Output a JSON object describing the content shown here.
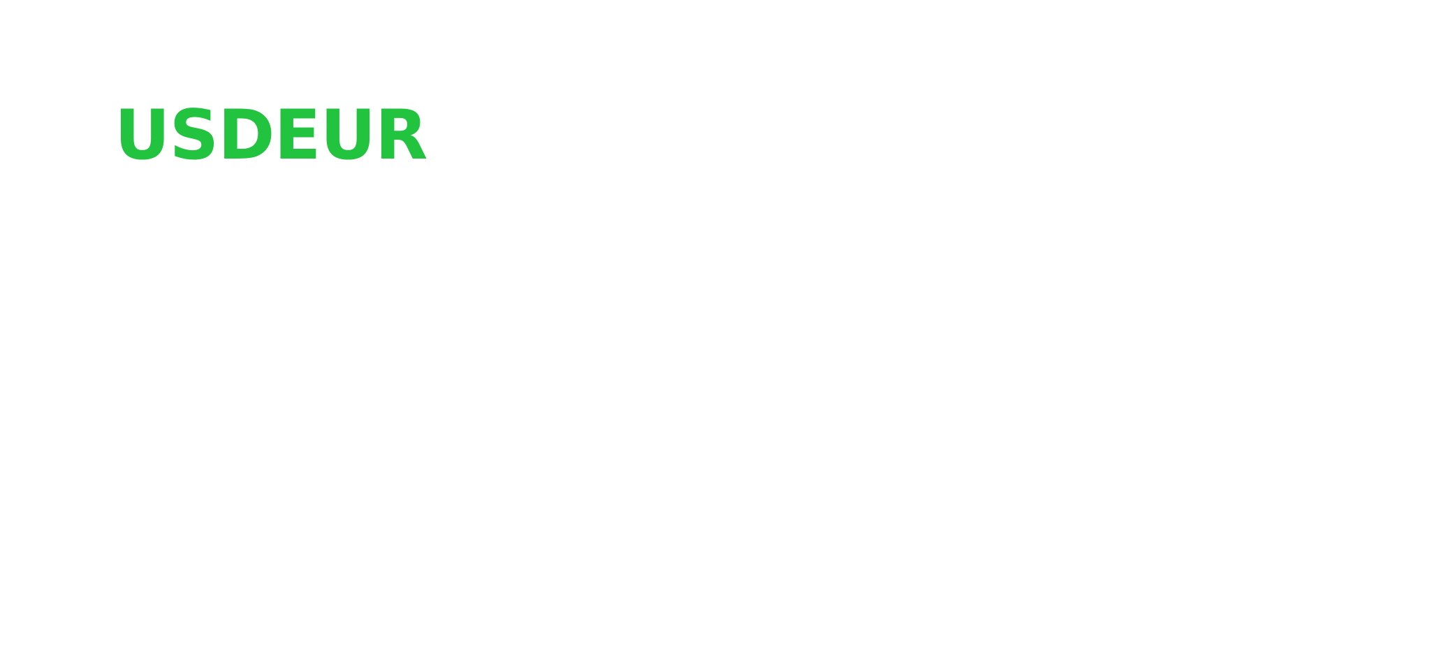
{
  "ticker": {
    "symbol": "USDEUR",
    "color": "#22c33f"
  },
  "page": {
    "background": "#ffffff"
  }
}
